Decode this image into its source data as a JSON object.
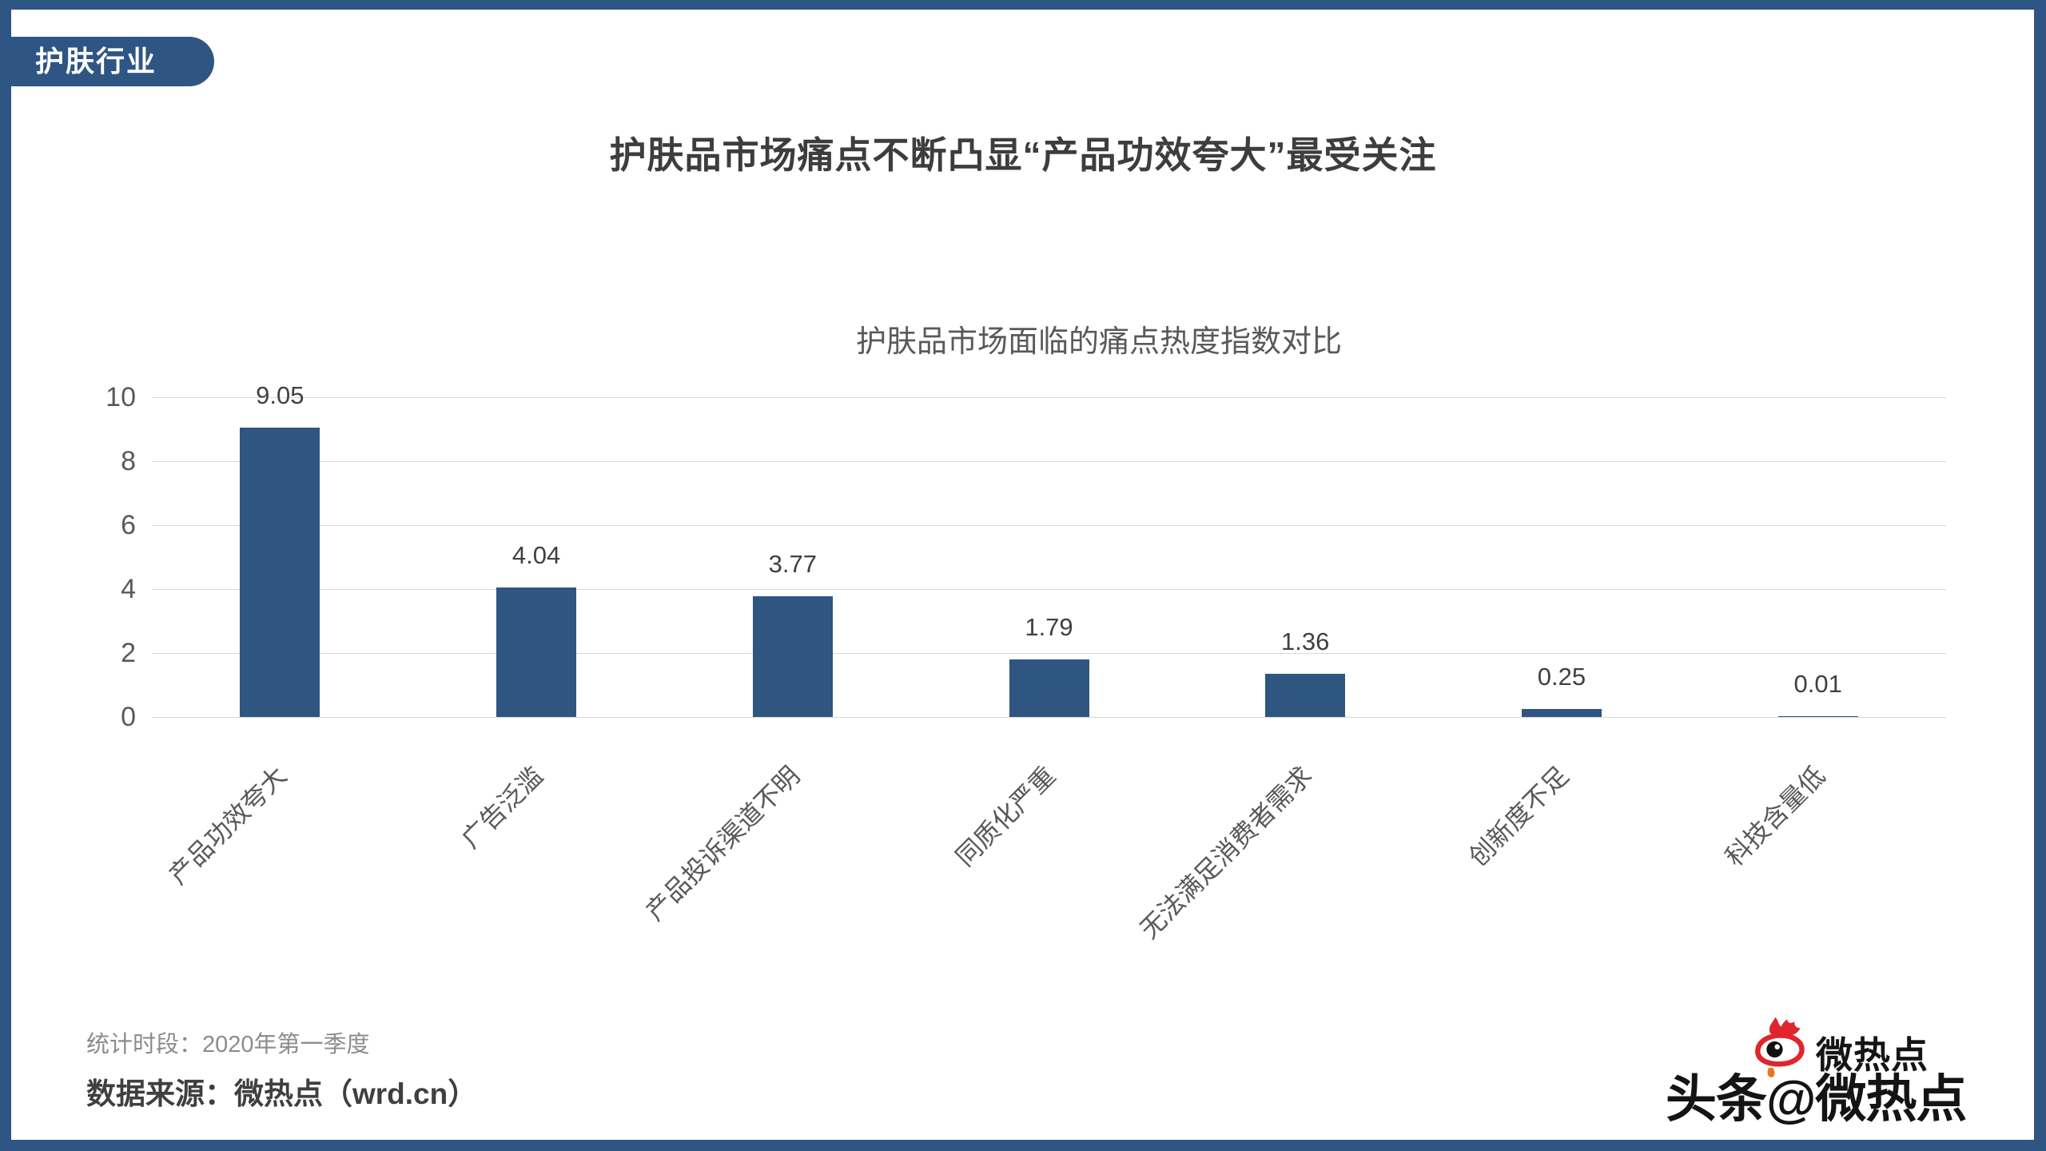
{
  "page": {
    "badge": "护肤行业",
    "title": "护肤品市场痛点不断凸显“产品功效夸大”最受关注",
    "footer": {
      "period_label": "统计时段：2020年第一季度",
      "source_label": "数据来源：微热点（wrd.cn）"
    },
    "watermark": {
      "logo_icon": "weibo-eye-flame-icon",
      "logo_text": "微热点",
      "overlay_text": "头条@微热点"
    },
    "colors": {
      "frame": "#2E5584",
      "bar": "#2F5581",
      "grid": "#D9D9D9",
      "title_text": "#3D3D3D",
      "subtitle_text": "#595959",
      "axis_text": "#595959",
      "value_text": "#404040",
      "logo_red": "#E0252C",
      "logo_orange": "#E87722"
    }
  },
  "chart_data": {
    "type": "bar",
    "title": "护肤品市场面临的痛点热度指数对比",
    "categories": [
      "产品功效夸大",
      "广告泛滥",
      "产品投诉渠道不明",
      "同质化严重",
      "无法满足消费者需求",
      "创新度不足",
      "科技含量低"
    ],
    "values": [
      9.05,
      4.04,
      3.77,
      1.79,
      1.36,
      0.25,
      0.01
    ],
    "value_labels": [
      "9.05",
      "4.04",
      "3.77",
      "1.79",
      "1.36",
      "0.25",
      "0.01"
    ],
    "xlabel": "",
    "ylabel": "",
    "ylim": [
      0,
      10
    ],
    "yticks": [
      0,
      2,
      4,
      6,
      8,
      10
    ],
    "grid": true,
    "legend": "none",
    "x_label_rotation": 45
  }
}
